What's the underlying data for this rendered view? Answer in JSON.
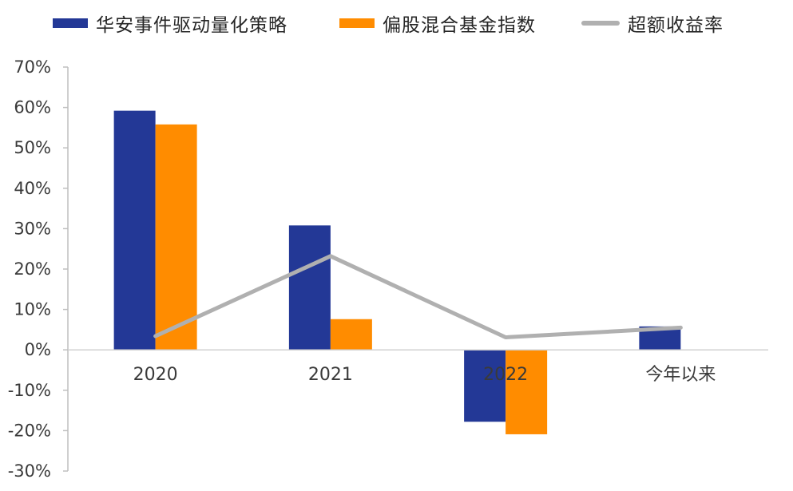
{
  "chart_data": {
    "type": "bar",
    "categories": [
      "2020",
      "2021",
      "2022",
      "今年以来"
    ],
    "series": [
      {
        "name": "华安事件驱动量化策略",
        "type": "bar",
        "color": "#233896",
        "values": [
          59.2,
          30.8,
          -17.8,
          5.8
        ]
      },
      {
        "name": "偏股混合基金指数",
        "type": "bar",
        "color": "#FF8C00",
        "values": [
          55.8,
          7.6,
          -20.9,
          null
        ]
      },
      {
        "name": "超额收益率",
        "type": "line",
        "color": "#B0B0B0",
        "values": [
          3.4,
          23.2,
          3.1,
          5.5
        ]
      }
    ],
    "ylim": [
      -30,
      70
    ],
    "yticks": [
      "70%",
      "60%",
      "50%",
      "40%",
      "30%",
      "20%",
      "10%",
      "0%",
      "-10%",
      "-20%",
      "-30%"
    ],
    "ytick_values": [
      70,
      60,
      50,
      40,
      30,
      20,
      10,
      0,
      -10,
      -20,
      -30
    ],
    "title": "",
    "xlabel": "",
    "ylabel": "",
    "legend_position": "top",
    "grid": false
  }
}
